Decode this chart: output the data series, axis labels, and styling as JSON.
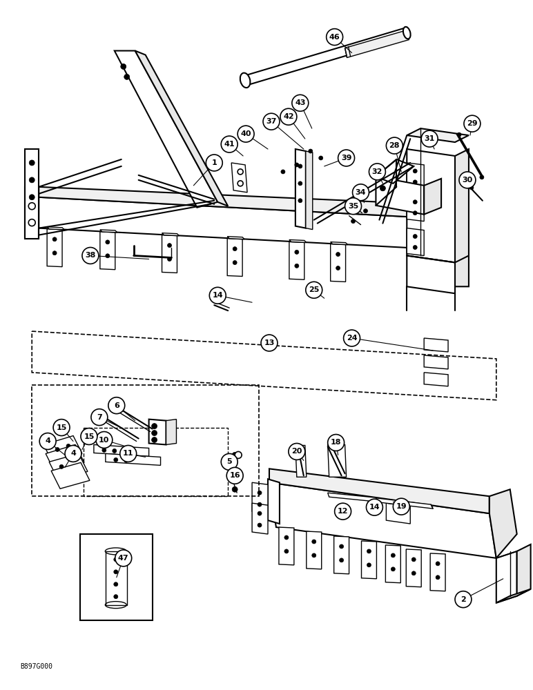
{
  "watermark": "B897G000",
  "bg_color": "#ffffff",
  "line_color": "#000000",
  "figsize": [
    7.72,
    10.0
  ],
  "dpi": 100,
  "labels": [
    [
      "1",
      310,
      235
    ],
    [
      "2",
      672,
      870
    ],
    [
      "4",
      68,
      640
    ],
    [
      "4",
      105,
      658
    ],
    [
      "5",
      332,
      670
    ],
    [
      "6",
      168,
      588
    ],
    [
      "7",
      143,
      605
    ],
    [
      "10",
      150,
      638
    ],
    [
      "11",
      185,
      658
    ],
    [
      "12",
      497,
      742
    ],
    [
      "13",
      390,
      497
    ],
    [
      "14",
      315,
      428
    ],
    [
      "14",
      543,
      736
    ],
    [
      "15",
      88,
      620
    ],
    [
      "15",
      128,
      633
    ],
    [
      "16",
      340,
      690
    ],
    [
      "18",
      487,
      642
    ],
    [
      "19",
      582,
      735
    ],
    [
      "20",
      430,
      655
    ],
    [
      "24",
      510,
      490
    ],
    [
      "25",
      455,
      420
    ],
    [
      "28",
      572,
      210
    ],
    [
      "29",
      685,
      178
    ],
    [
      "30",
      678,
      260
    ],
    [
      "31",
      623,
      200
    ],
    [
      "32",
      547,
      248
    ],
    [
      "34",
      523,
      278
    ],
    [
      "35",
      512,
      298
    ],
    [
      "37",
      393,
      175
    ],
    [
      "38",
      130,
      370
    ],
    [
      "39",
      502,
      228
    ],
    [
      "40",
      356,
      193
    ],
    [
      "41",
      332,
      208
    ],
    [
      "42",
      418,
      168
    ],
    [
      "43",
      435,
      148
    ],
    [
      "46",
      485,
      52
    ],
    [
      "47",
      178,
      810
    ]
  ]
}
